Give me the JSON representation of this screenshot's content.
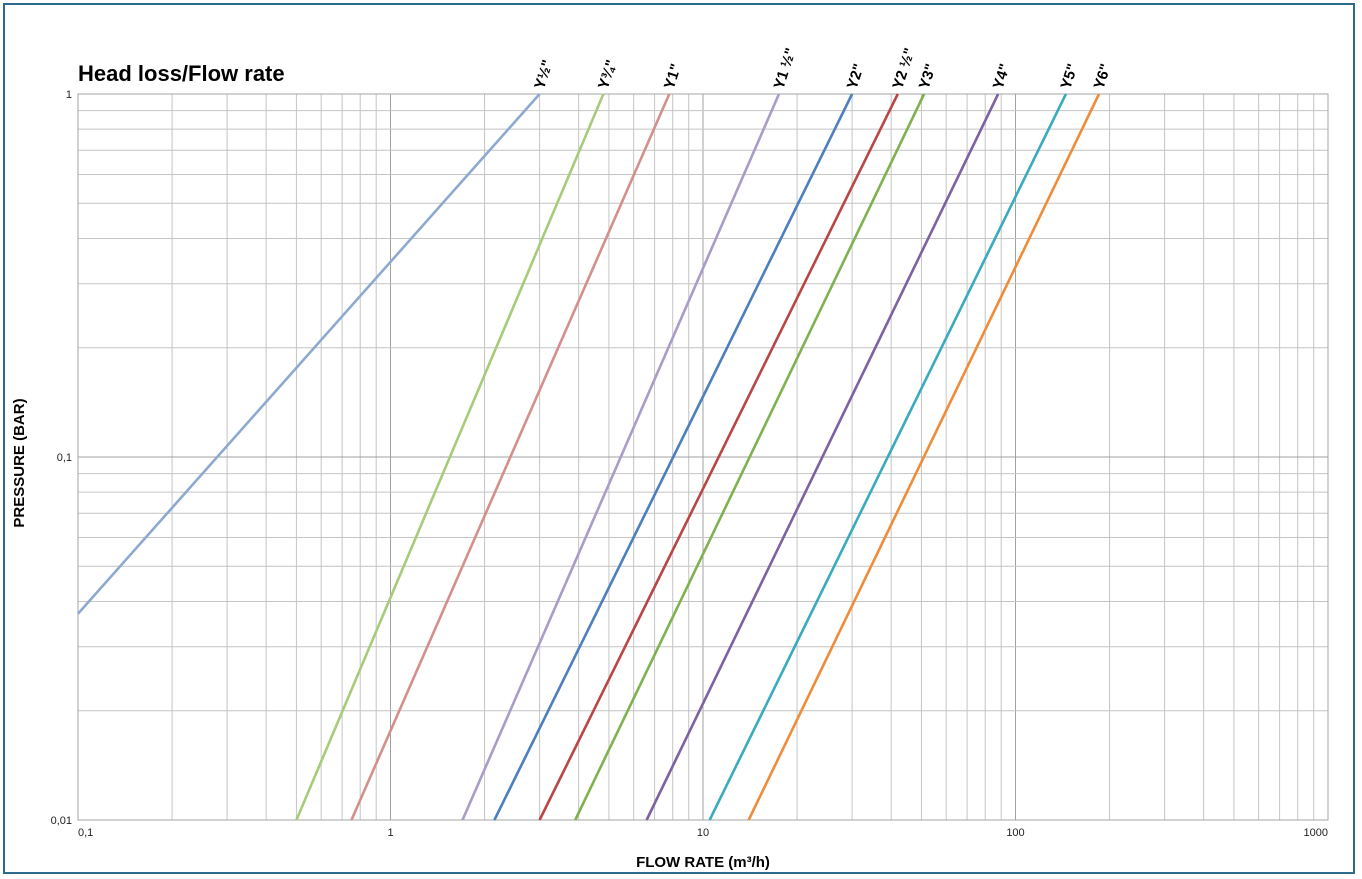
{
  "chart_data": {
    "type": "line",
    "title": "Head loss/Flow rate",
    "xlabel": "FLOW RATE (m³/h)",
    "ylabel": "PRESSURE (BAR)",
    "xscale": "log",
    "yscale": "log",
    "xlim": [
      0.1,
      1000
    ],
    "ylim": [
      0.01,
      1
    ],
    "xticks": [
      {
        "value": 0.1,
        "label": "0,1"
      },
      {
        "value": 1,
        "label": "1"
      },
      {
        "value": 10,
        "label": "10"
      },
      {
        "value": 100,
        "label": "100"
      },
      {
        "value": 1000,
        "label": "1000"
      }
    ],
    "yticks": [
      {
        "value": 1,
        "label": "1"
      },
      {
        "value": 0.1,
        "label": "0,1"
      },
      {
        "value": 0.01,
        "label": "0,01"
      }
    ],
    "grid": true,
    "legend": "labels at line ends (top)",
    "series": [
      {
        "name": "Y½\"",
        "color": "#8ea9cf",
        "points": [
          [
            0.1,
            0.037
          ],
          [
            3.0,
            1.0
          ]
        ]
      },
      {
        "name": "Y¾\"",
        "color": "#a6cc7a",
        "points": [
          [
            0.5,
            0.01
          ],
          [
            4.8,
            1.0
          ]
        ]
      },
      {
        "name": "Y1\"",
        "color": "#d48f8c",
        "points": [
          [
            0.75,
            0.01
          ],
          [
            7.8,
            1.0
          ]
        ]
      },
      {
        "name": "Y1 ½\"",
        "color": "#a99cc7",
        "points": [
          [
            1.7,
            0.01
          ],
          [
            17.5,
            1.0
          ]
        ]
      },
      {
        "name": "Y2\"",
        "color": "#4b7fbf",
        "points": [
          [
            2.15,
            0.01
          ],
          [
            30,
            1.0
          ]
        ]
      },
      {
        "name": "Y2 ½\"",
        "color": "#b84744",
        "points": [
          [
            3.0,
            0.01
          ],
          [
            42,
            1.0
          ]
        ]
      },
      {
        "name": "Y3\"",
        "color": "#7fb24f",
        "points": [
          [
            3.9,
            0.01
          ],
          [
            51,
            1.0
          ]
        ]
      },
      {
        "name": "Y4\"",
        "color": "#7c62a1",
        "points": [
          [
            6.6,
            0.01
          ],
          [
            88,
            1.0
          ]
        ]
      },
      {
        "name": "Y5\"",
        "color": "#3aaabf",
        "points": [
          [
            10.5,
            0.01
          ],
          [
            145,
            1.0
          ]
        ]
      },
      {
        "name": "Y6\"",
        "color": "#ef8c3a",
        "points": [
          [
            14,
            0.01
          ],
          [
            185,
            1.0
          ]
        ]
      }
    ]
  }
}
